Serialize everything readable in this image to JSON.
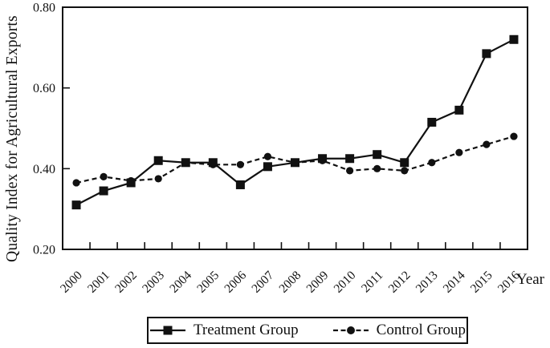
{
  "figure": {
    "background": "#ffffff",
    "ink_color": "#111111"
  },
  "chart_data": {
    "type": "line",
    "title": "",
    "xlabel": "Year",
    "ylabel": "Quality Index for Agricultural Exports",
    "ylim": [
      0.2,
      0.8
    ],
    "yticks": [
      0.2,
      0.4,
      0.6,
      0.8
    ],
    "ytick_labels": [
      "0.20",
      "0.40",
      "0.60",
      "0.80"
    ],
    "grid": false,
    "legend_position": "bottom",
    "categories": [
      "2000",
      "2001",
      "2002",
      "2003",
      "2004",
      "2005",
      "2006",
      "2007",
      "2008",
      "2009",
      "2010",
      "2011",
      "2012",
      "2013",
      "2014",
      "2015",
      "2016"
    ],
    "series": [
      {
        "name": "Treatment Group",
        "marker": "square",
        "line_style": "solid",
        "color": "#111111",
        "values": [
          0.31,
          0.345,
          0.365,
          0.42,
          0.415,
          0.415,
          0.36,
          0.405,
          0.415,
          0.425,
          0.425,
          0.435,
          0.415,
          0.515,
          0.545,
          0.685,
          0.72
        ]
      },
      {
        "name": "Control Group",
        "marker": "circle",
        "line_style": "dashed",
        "color": "#111111",
        "values": [
          0.365,
          0.38,
          0.37,
          0.375,
          0.415,
          0.41,
          0.41,
          0.43,
          0.415,
          0.42,
          0.395,
          0.4,
          0.395,
          0.415,
          0.44,
          0.46,
          0.48
        ]
      }
    ]
  }
}
